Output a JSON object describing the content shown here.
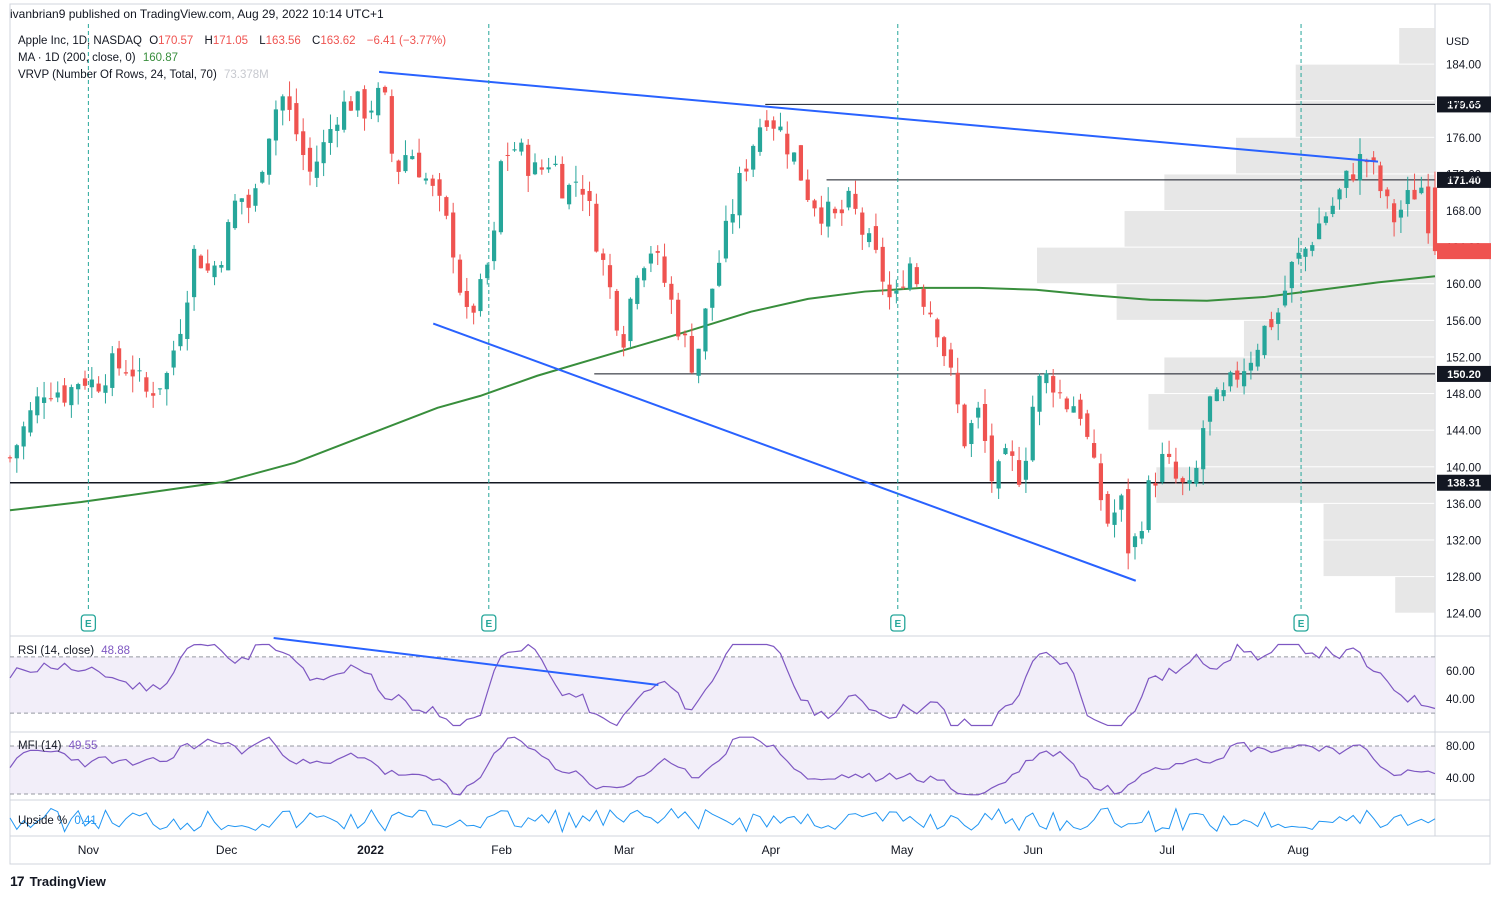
{
  "header": {
    "published": "ivanbrian9 published on TradingView.com, Aug 29, 2022 10:14 UTC+1"
  },
  "legend": {
    "symbol": "Apple Inc, 1D, NASDAQ",
    "o_label": "O",
    "o": "170.57",
    "h_label": "H",
    "h": "171.05",
    "l_label": "L",
    "l": "163.56",
    "c_label": "C",
    "c": "163.62",
    "change": "−6.41 (−3.77%)",
    "ma_label": "MA · 1D (200, close, 0)",
    "ma_value": "160.87",
    "vrvp_label": "VRVP (Number Of Rows, 24, Total, 70)",
    "vrvp_value": "73.378M"
  },
  "indicators": {
    "rsi_label": "RSI (14, close)",
    "rsi_value": "48.88",
    "mfi_label": "MFI (14)",
    "mfi_value": "49.55",
    "upside_label": "Upside %",
    "upside_value": "0.41"
  },
  "footer": {
    "brand": "TradingView"
  },
  "colors": {
    "up": "#26a69a",
    "down": "#ef5350",
    "ma": "#388e3c",
    "trend": "#2962ff",
    "rsi": "#7e57c2",
    "upside": "#2196f3",
    "vrvp": "#e3e3e3",
    "level": "#131722",
    "earnings": "#26a69a"
  },
  "chart_data": {
    "type": "candlestick",
    "currency": "USD",
    "ylim": [
      122,
      188
    ],
    "y_ticks": [
      "124.00",
      "128.00",
      "132.00",
      "136.00",
      "140.00",
      "144.00",
      "148.00",
      "152.00",
      "156.00",
      "160.00",
      "164.00",
      "168.00",
      "172.00",
      "176.00",
      "180.00",
      "184.00",
      "188.00"
    ],
    "x_labels": [
      {
        "label": "Nov",
        "pos": 0.055
      },
      {
        "label": "Dec",
        "pos": 0.152
      },
      {
        "label": "2022",
        "pos": 0.253
      },
      {
        "label": "Feb",
        "pos": 0.345
      },
      {
        "label": "Mar",
        "pos": 0.431
      },
      {
        "label": "Apr",
        "pos": 0.534
      },
      {
        "label": "May",
        "pos": 0.626
      },
      {
        "label": "Jun",
        "pos": 0.718
      },
      {
        "label": "Jul",
        "pos": 0.812
      },
      {
        "label": "Aug",
        "pos": 0.904
      }
    ],
    "price_levels": [
      {
        "value": 179.65,
        "label": "179.65",
        "from": 0.53
      },
      {
        "value": 171.4,
        "label": "171.40",
        "from": 0.573
      },
      {
        "value": 150.2,
        "label": "150.20",
        "from": 0.41
      },
      {
        "value": 138.31,
        "label": "138.31",
        "from": 0.0
      }
    ],
    "last_price": 163.62,
    "earnings_markers": [
      0.055,
      0.336,
      0.623,
      0.906
    ],
    "earnings_label": "E",
    "trendlines": [
      {
        "from": [
          0.259,
          183.2
        ],
        "to": [
          0.96,
          173.4
        ]
      },
      {
        "from": [
          0.297,
          155.7
        ],
        "to": [
          0.79,
          127.6
        ]
      }
    ],
    "ma200": [
      [
        0.0,
        135.3
      ],
      [
        0.05,
        136.2
      ],
      [
        0.1,
        137.3
      ],
      [
        0.15,
        138.4
      ],
      [
        0.2,
        140.5
      ],
      [
        0.25,
        143.5
      ],
      [
        0.3,
        146.5
      ],
      [
        0.33,
        147.8
      ],
      [
        0.37,
        150.0
      ],
      [
        0.42,
        152.3
      ],
      [
        0.47,
        154.6
      ],
      [
        0.52,
        157.0
      ],
      [
        0.56,
        158.4
      ],
      [
        0.6,
        159.2
      ],
      [
        0.64,
        159.6
      ],
      [
        0.68,
        159.6
      ],
      [
        0.72,
        159.4
      ],
      [
        0.76,
        158.8
      ],
      [
        0.8,
        158.3
      ],
      [
        0.84,
        158.2
      ],
      [
        0.88,
        158.6
      ],
      [
        0.92,
        159.4
      ],
      [
        0.96,
        160.2
      ],
      [
        1.0,
        160.87
      ]
    ],
    "price_path": [
      [
        0.0,
        141
      ],
      [
        0.012,
        145
      ],
      [
        0.025,
        149
      ],
      [
        0.04,
        148
      ],
      [
        0.05,
        150
      ],
      [
        0.06,
        149
      ],
      [
        0.07,
        151
      ],
      [
        0.085,
        151
      ],
      [
        0.095,
        148
      ],
      [
        0.11,
        150
      ],
      [
        0.12,
        156
      ],
      [
        0.13,
        164
      ],
      [
        0.14,
        161
      ],
      [
        0.15,
        164
      ],
      [
        0.16,
        170
      ],
      [
        0.17,
        168
      ],
      [
        0.18,
        176
      ],
      [
        0.19,
        181
      ],
      [
        0.2,
        177
      ],
      [
        0.21,
        172
      ],
      [
        0.22,
        175
      ],
      [
        0.23,
        179
      ],
      [
        0.24,
        180
      ],
      [
        0.25,
        179
      ],
      [
        0.262,
        181
      ],
      [
        0.27,
        172
      ],
      [
        0.28,
        175
      ],
      [
        0.29,
        172
      ],
      [
        0.3,
        169
      ],
      [
        0.31,
        165
      ],
      [
        0.32,
        156
      ],
      [
        0.33,
        159
      ],
      [
        0.34,
        165
      ],
      [
        0.345,
        174
      ],
      [
        0.355,
        175
      ],
      [
        0.37,
        172
      ],
      [
        0.38,
        174
      ],
      [
        0.39,
        170
      ],
      [
        0.4,
        172
      ],
      [
        0.41,
        166
      ],
      [
        0.42,
        160
      ],
      [
        0.43,
        154
      ],
      [
        0.44,
        162
      ],
      [
        0.45,
        164
      ],
      [
        0.46,
        160
      ],
      [
        0.47,
        155
      ],
      [
        0.48,
        151
      ],
      [
        0.49,
        158
      ],
      [
        0.5,
        164
      ],
      [
        0.51,
        170
      ],
      [
        0.52,
        175
      ],
      [
        0.53,
        179
      ],
      [
        0.54,
        177
      ],
      [
        0.55,
        174
      ],
      [
        0.56,
        170
      ],
      [
        0.57,
        168
      ],
      [
        0.58,
        167
      ],
      [
        0.59,
        169
      ],
      [
        0.6,
        165
      ],
      [
        0.61,
        162
      ],
      [
        0.62,
        157
      ],
      [
        0.63,
        163
      ],
      [
        0.64,
        159
      ],
      [
        0.65,
        156
      ],
      [
        0.66,
        150
      ],
      [
        0.67,
        143
      ],
      [
        0.68,
        146
      ],
      [
        0.69,
        138
      ],
      [
        0.7,
        141
      ],
      [
        0.71,
        139
      ],
      [
        0.72,
        149
      ],
      [
        0.73,
        150
      ],
      [
        0.74,
        147
      ],
      [
        0.75,
        147
      ],
      [
        0.76,
        140
      ],
      [
        0.77,
        134
      ],
      [
        0.78,
        136
      ],
      [
        0.785,
        131
      ],
      [
        0.79,
        132
      ],
      [
        0.8,
        138
      ],
      [
        0.81,
        141
      ],
      [
        0.82,
        138
      ],
      [
        0.83,
        137
      ],
      [
        0.84,
        147
      ],
      [
        0.85,
        147
      ],
      [
        0.86,
        150
      ],
      [
        0.87,
        152
      ],
      [
        0.88,
        155
      ],
      [
        0.89,
        157
      ],
      [
        0.9,
        162
      ],
      [
        0.91,
        164
      ],
      [
        0.92,
        167
      ],
      [
        0.93,
        169
      ],
      [
        0.94,
        172
      ],
      [
        0.95,
        174
      ],
      [
        0.955,
        173
      ],
      [
        0.96,
        171
      ],
      [
        0.97,
        167
      ],
      [
        0.98,
        169
      ],
      [
        0.99,
        171
      ],
      [
        1.0,
        163.62
      ]
    ],
    "vrvp_profile": [
      {
        "price": 186,
        "width": 0.09
      },
      {
        "price": 182,
        "width": 0.35
      },
      {
        "price": 178,
        "width": 0.35
      },
      {
        "price": 174,
        "width": 0.5
      },
      {
        "price": 170,
        "width": 0.68
      },
      {
        "price": 166,
        "width": 0.78
      },
      {
        "price": 162,
        "width": 1.0
      },
      {
        "price": 158,
        "width": 0.8
      },
      {
        "price": 154,
        "width": 0.48
      },
      {
        "price": 150,
        "width": 0.68
      },
      {
        "price": 146,
        "width": 0.72
      },
      {
        "price": 142,
        "width": 0.58
      },
      {
        "price": 138,
        "width": 0.7
      },
      {
        "price": 134,
        "width": 0.28
      },
      {
        "price": 130,
        "width": 0.28
      },
      {
        "price": 126,
        "width": 0.1
      }
    ],
    "rsi_ticks": [
      "60.00",
      "40.00"
    ],
    "mfi_ticks": [
      "80.00",
      "40.00"
    ]
  }
}
